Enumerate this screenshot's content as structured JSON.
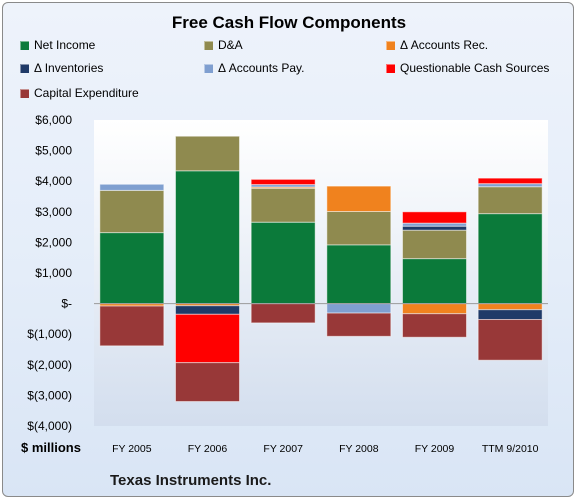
{
  "chart_data": {
    "type": "bar",
    "stacked": true,
    "title": "Free Cash Flow Components",
    "subtitle": "Texas Instruments Inc.",
    "ylabel": "$ millions",
    "ylim": [
      -4000,
      6000
    ],
    "yticks": [
      {
        "value": 6000,
        "label": "$6,000"
      },
      {
        "value": 5000,
        "label": "$5,000"
      },
      {
        "value": 4000,
        "label": "$4,000"
      },
      {
        "value": 3000,
        "label": "$3,000"
      },
      {
        "value": 2000,
        "label": "$2,000"
      },
      {
        "value": 1000,
        "label": "$1,000"
      },
      {
        "value": 0,
        "label": "$-"
      },
      {
        "value": -1000,
        "label": "$(1,000)"
      },
      {
        "value": -2000,
        "label": "$(2,000)"
      },
      {
        "value": -3000,
        "label": "$(3,000)"
      },
      {
        "value": -4000,
        "label": "$(4,000)"
      }
    ],
    "categories": [
      "FY 2005",
      "FY 2006",
      "FY 2007",
      "FY 2008",
      "FY 2009",
      "TTM 9/2010"
    ],
    "series": [
      {
        "name": "Net Income",
        "color": "#0b7a3a",
        "values": [
          2320,
          4340,
          2660,
          1920,
          1470,
          2940
        ]
      },
      {
        "name": "D&A",
        "color": "#8f8a4f",
        "values": [
          1380,
          1130,
          1110,
          1090,
          930,
          880
        ]
      },
      {
        "name": "Δ Accounts Rec.",
        "color": "#f0821e",
        "values": [
          -80,
          -70,
          40,
          830,
          -330,
          -200
        ]
      },
      {
        "name": "Δ Inventories",
        "color": "#1f3a68",
        "values": [
          0,
          -280,
          0,
          0,
          130,
          -320
        ]
      },
      {
        "name": "Δ Accounts Pay.",
        "color": "#7f9fd0",
        "values": [
          200,
          0,
          80,
          -310,
          100,
          100
        ]
      },
      {
        "name": "Questionable Cash Sources",
        "color": "#ff0000",
        "values": [
          0,
          -1580,
          170,
          0,
          370,
          180
        ]
      },
      {
        "name": "Capital Expenditure",
        "color": "#983838",
        "values": [
          -1300,
          -1270,
          -630,
          -760,
          -770,
          -1330
        ]
      }
    ],
    "legend_position": "top",
    "grid": false
  }
}
